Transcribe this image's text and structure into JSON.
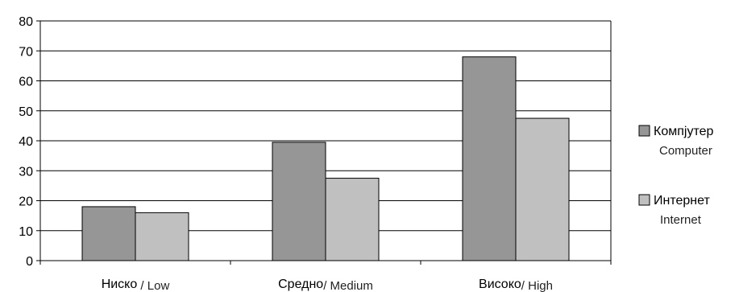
{
  "chart_data": {
    "type": "bar",
    "categories": [
      {
        "main": "Ниско",
        "sub": " / Low"
      },
      {
        "main": "Средно",
        "sub": "/ Medium"
      },
      {
        "main": "Високо",
        "sub": "/ High"
      }
    ],
    "series": [
      {
        "name": "Компјутер",
        "name_sub": "Computer",
        "color": "#969696",
        "values": [
          18,
          39.5,
          68
        ]
      },
      {
        "name": "Интернет",
        "name_sub": "Internet",
        "color": "#c0c0c0",
        "values": [
          16,
          27.5,
          47.5
        ]
      }
    ],
    "ylim": [
      0,
      80
    ],
    "yticks": [
      0,
      10,
      20,
      30,
      40,
      50,
      60,
      70,
      80
    ],
    "grid": true,
    "legend": "right"
  }
}
